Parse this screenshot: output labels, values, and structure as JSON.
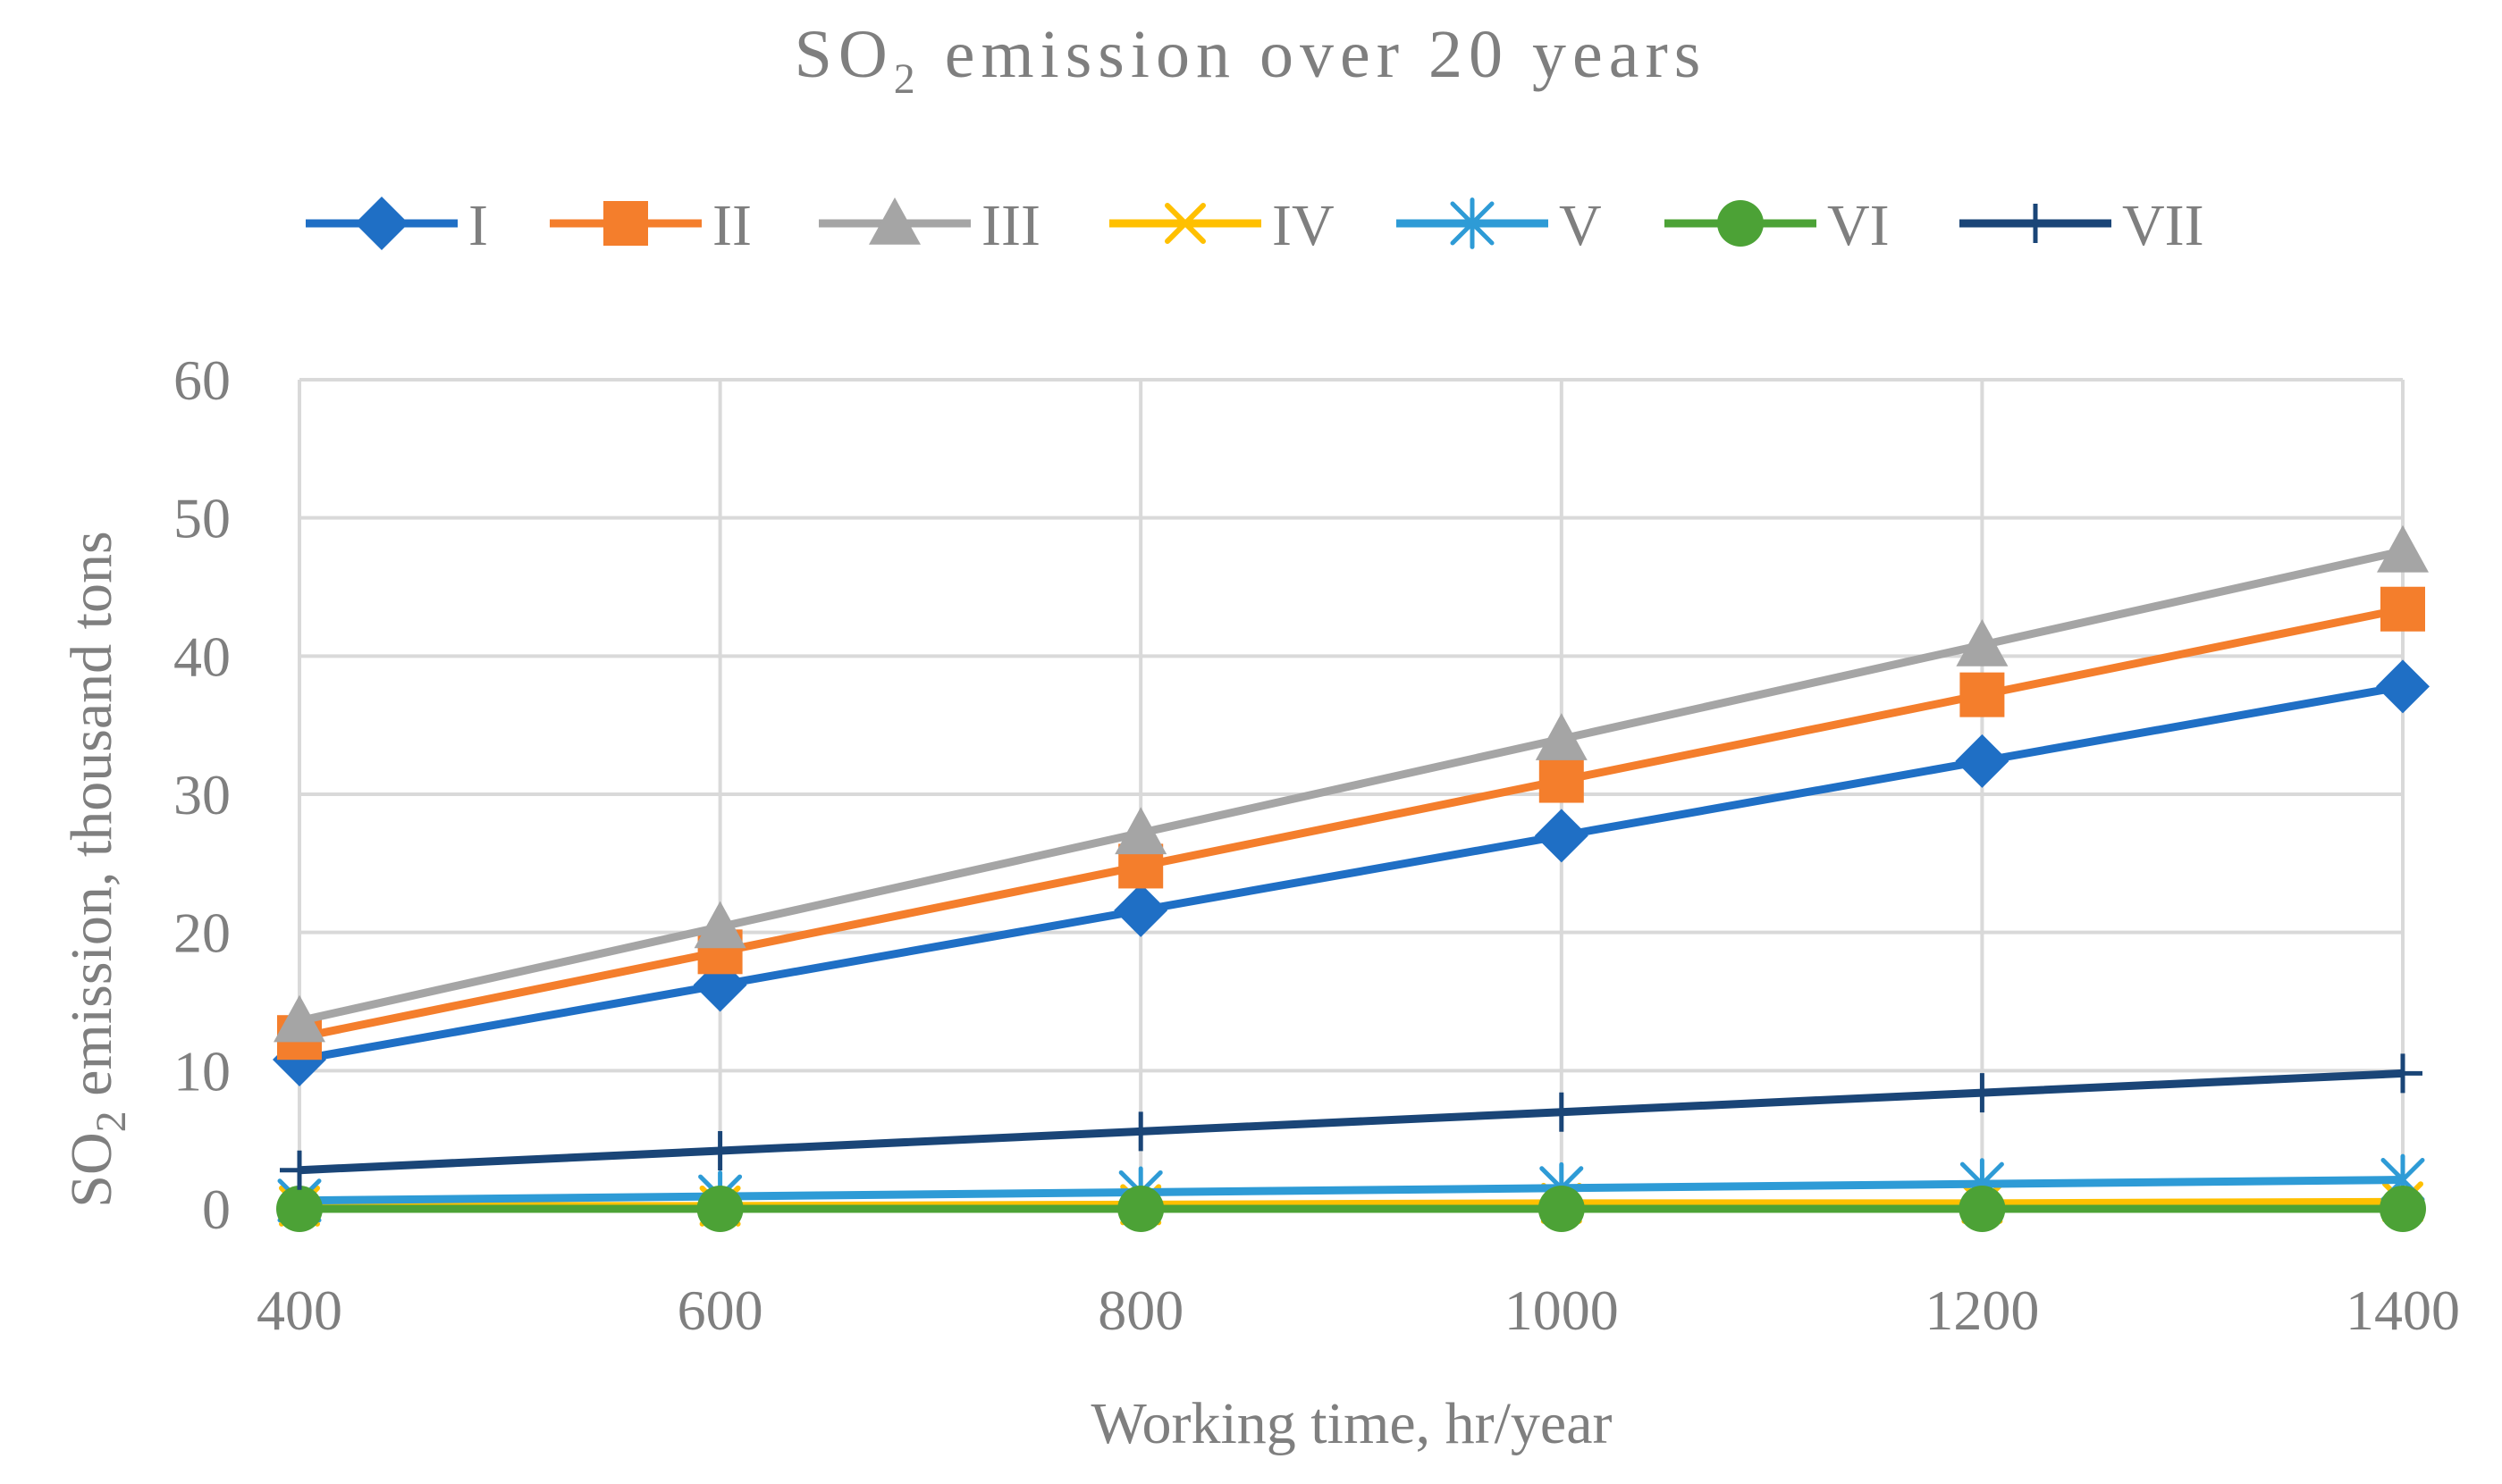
{
  "chart_data": {
    "type": "line",
    "title": "SO",
    "title_subscript": "2",
    "title_rest": " emission over 20 years",
    "xlabel": "Working time, hr/year",
    "ylabel_prefix": "SO",
    "ylabel_subscript": "2",
    "ylabel_rest": " emission, thousand tons",
    "x": [
      400,
      600,
      800,
      1000,
      1200,
      1400
    ],
    "x_tick_labels": [
      "400",
      "600",
      "800",
      "1000",
      "1200",
      "1400"
    ],
    "ylim": [
      0,
      60
    ],
    "y_ticks": [
      0,
      10,
      20,
      30,
      40,
      50,
      60
    ],
    "y_tick_labels": [
      "0",
      "10",
      "20",
      "30",
      "40",
      "50",
      "60"
    ],
    "grid": true,
    "legend_position": "top",
    "series": [
      {
        "name": "I",
        "color": "#1f6fc5",
        "marker": "diamond",
        "values": [
          10.8,
          16.2,
          21.6,
          27.0,
          32.4,
          37.8
        ]
      },
      {
        "name": "II",
        "color": "#f47e2c",
        "marker": "square",
        "values": [
          12.4,
          18.6,
          24.8,
          31.0,
          37.2,
          43.4
        ]
      },
      {
        "name": "III",
        "color": "#a5a5a5",
        "marker": "triangle",
        "values": [
          13.6,
          20.4,
          27.2,
          34.0,
          40.8,
          47.6
        ]
      },
      {
        "name": "IV",
        "color": "#ffc000",
        "marker": "x",
        "values": [
          0.2,
          0.2,
          0.3,
          0.4,
          0.4,
          0.5
        ]
      },
      {
        "name": "V",
        "color": "#2e9bd6",
        "marker": "asterisk",
        "values": [
          0.6,
          0.9,
          1.2,
          1.5,
          1.8,
          2.1
        ]
      },
      {
        "name": "VI",
        "color": "#4ca236",
        "marker": "circle",
        "values": [
          0.0,
          0.0,
          0.0,
          0.0,
          0.0,
          0.0
        ]
      },
      {
        "name": "VII",
        "color": "#1a4577",
        "marker": "plus",
        "values": [
          2.8,
          4.2,
          5.6,
          7.0,
          8.4,
          9.8
        ]
      }
    ]
  }
}
